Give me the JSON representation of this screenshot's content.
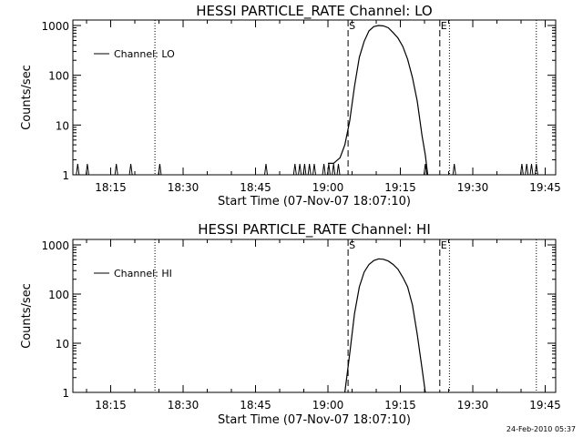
{
  "chart_data": [
    {
      "type": "line",
      "title": "HESSI PARTICLE_RATE Channel: LO",
      "xlabel": "Start Time (07-Nov-07 18:07:10)",
      "ylabel": "Counts/sec",
      "x_unit": "minutes after 18:07:10",
      "xlim": [
        "18:07:10",
        "19:47:10"
      ],
      "ylim": [
        1,
        1000
      ],
      "yscale": "log",
      "x_ticks": [
        "18:15",
        "18:30",
        "18:45",
        "19:00",
        "19:15",
        "19:30",
        "19:45"
      ],
      "y_ticks": [
        "1",
        "10",
        "100",
        "1000"
      ],
      "legend": {
        "position": "top-left",
        "entries": [
          "Channel: LO"
        ]
      },
      "grid": false,
      "markers": [
        {
          "label": "S",
          "time": "19:04:10",
          "style": "dashed"
        },
        {
          "label": "E",
          "time": "19:23:10",
          "style": "dashed"
        }
      ],
      "dotted_lines": [
        "18:24:10",
        "19:25:10",
        "19:43:10"
      ],
      "series": [
        {
          "name": "Channel: LO",
          "baseline": 1,
          "spikes_at": [
            "18:08:10",
            "18:10:10",
            "18:16:10",
            "18:19:10",
            "18:25:10",
            "18:47:10",
            "18:53:10",
            "18:54:10",
            "18:55:10",
            "18:56:10",
            "18:57:10",
            "18:59:10",
            "19:00:10",
            "19:01:10",
            "19:02:10",
            "19:20:10",
            "19:26:10",
            "19:40:10",
            "19:41:10",
            "19:42:10",
            "19:43:10"
          ],
          "x": [
            "19:00:00",
            "19:01:10",
            "19:02:30",
            "19:03:30",
            "19:04:30",
            "19:05:30",
            "19:06:30",
            "19:07:30",
            "19:08:30",
            "19:09:30",
            "19:10:30",
            "19:11:30",
            "19:12:30",
            "19:13:30",
            "19:14:30",
            "19:15:30",
            "19:16:30",
            "19:17:30",
            "19:18:30",
            "19:19:30",
            "19:20:10",
            "19:20:40"
          ],
          "values": [
            1.7,
            1.7,
            2.2,
            4.0,
            12,
            60,
            230,
            480,
            780,
            950,
            1000,
            980,
            900,
            720,
            560,
            380,
            210,
            90,
            30,
            6,
            2.5,
            1
          ]
        }
      ]
    },
    {
      "type": "line",
      "title": "HESSI PARTICLE_RATE Channel: HI",
      "xlabel": "Start Time (07-Nov-07 18:07:10)",
      "ylabel": "Counts/sec",
      "x_unit": "minutes after 18:07:10",
      "xlim": [
        "18:07:10",
        "19:47:10"
      ],
      "ylim": [
        1,
        1000
      ],
      "yscale": "log",
      "x_ticks": [
        "18:15",
        "18:30",
        "18:45",
        "19:00",
        "19:15",
        "19:30",
        "19:45"
      ],
      "y_ticks": [
        "1",
        "10",
        "100",
        "1000"
      ],
      "legend": {
        "position": "top-left",
        "entries": [
          "Channel: HI"
        ]
      },
      "grid": false,
      "markers": [
        {
          "label": "S",
          "time": "19:04:10",
          "style": "dashed"
        },
        {
          "label": "E",
          "time": "19:23:10",
          "style": "dashed"
        }
      ],
      "dotted_lines": [
        "18:24:10",
        "19:25:10",
        "19:43:10"
      ],
      "series": [
        {
          "name": "Channel: HI",
          "x": [
            "19:03:30",
            "19:04:30",
            "19:05:30",
            "19:06:30",
            "19:07:30",
            "19:08:30",
            "19:09:30",
            "19:10:30",
            "19:11:30",
            "19:12:30",
            "19:13:30",
            "19:14:30",
            "19:15:30",
            "19:16:30",
            "19:17:30",
            "19:18:30",
            "19:19:30",
            "19:20:10"
          ],
          "values": [
            1,
            6,
            40,
            140,
            280,
            400,
            480,
            520,
            510,
            470,
            400,
            320,
            220,
            140,
            60,
            15,
            3,
            1
          ]
        }
      ]
    }
  ],
  "timestamp": "24-Feb-2010 05:37"
}
